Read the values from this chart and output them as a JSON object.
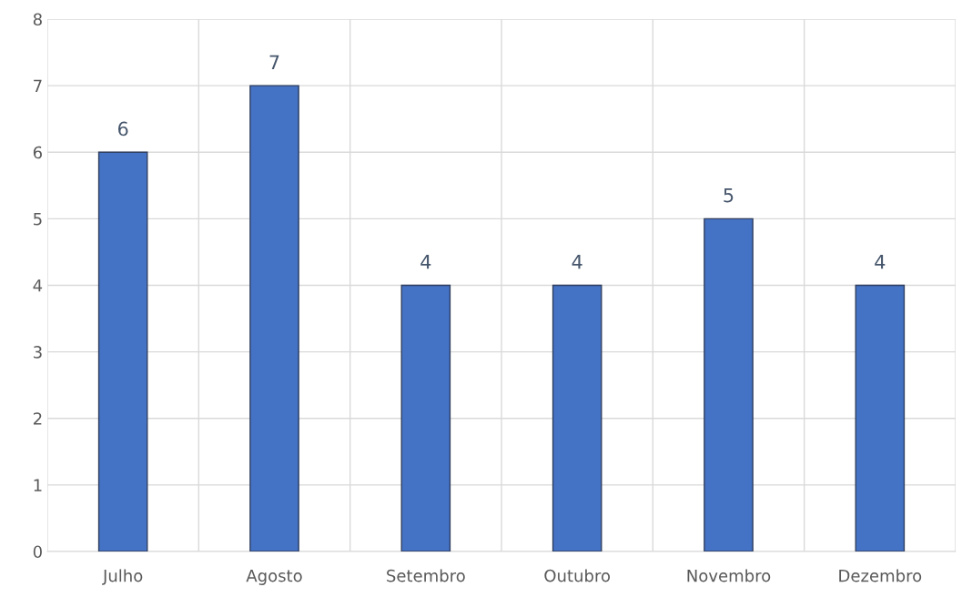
{
  "chart_data": {
    "type": "bar",
    "categories": [
      "Julho",
      "Agosto",
      "Setembro",
      "Outubro",
      "Novembro",
      "Dezembro"
    ],
    "values": [
      6,
      7,
      4,
      4,
      5,
      4
    ],
    "color": "#4472c4",
    "ylim": [
      0,
      8
    ],
    "yticks": [
      0,
      1,
      2,
      3,
      4,
      5,
      6,
      7,
      8
    ],
    "grid": true,
    "data_labels": true
  }
}
